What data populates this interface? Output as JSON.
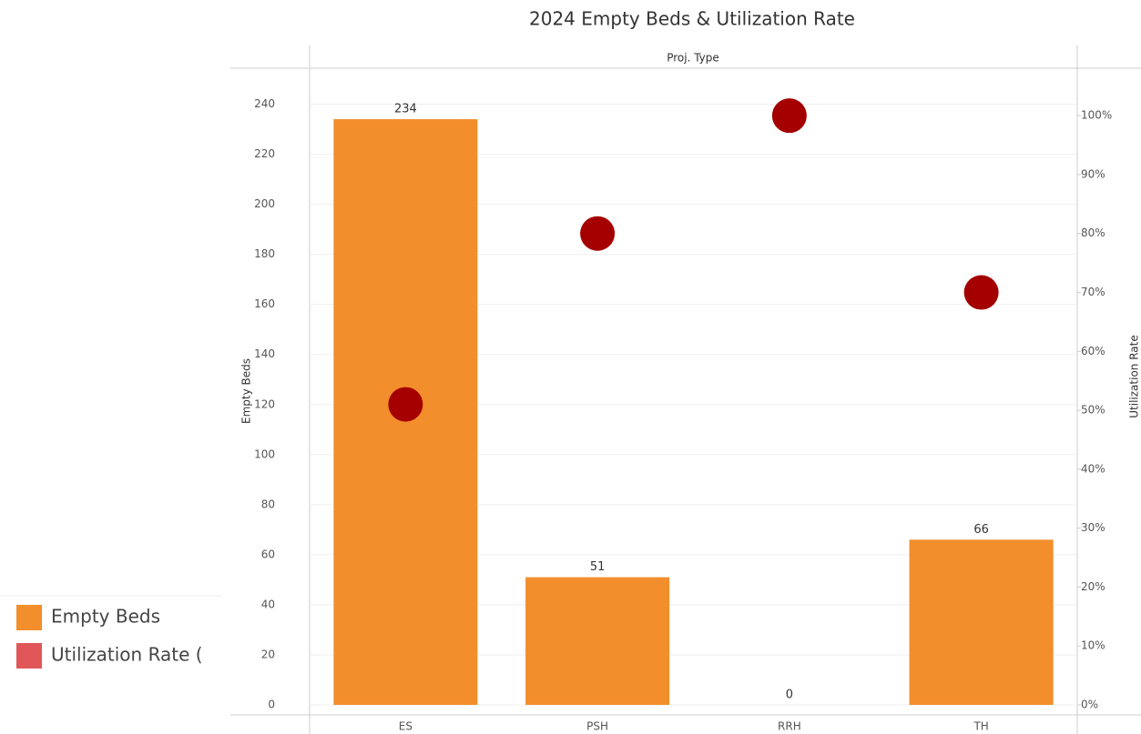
{
  "chart_data": {
    "type": "bar",
    "title": "2024 Empty Beds & Utilization Rate",
    "header": "Proj. Type",
    "categories": [
      "ES",
      "PSH",
      "RRH",
      "TH"
    ],
    "series": [
      {
        "name": "Empty Beds",
        "type": "bar",
        "color": "#f28e2b",
        "legend_color": "#f28e2b",
        "values": [
          234,
          51,
          0,
          66
        ]
      },
      {
        "name": "Utilization Rate (",
        "type": "scatter",
        "axis": "y2",
        "color": "#a50000",
        "legend_color": "#e15759",
        "values": [
          51,
          80,
          100,
          70
        ]
      }
    ],
    "ylabel": "Empty Beds",
    "y2label": "Utilization Rate",
    "ylim": [
      -4,
      254
    ],
    "yticks": [
      0,
      20,
      40,
      60,
      80,
      100,
      120,
      140,
      160,
      180,
      200,
      220,
      240
    ],
    "y2lim": [
      -1.7,
      107.9
    ],
    "y2ticks": [
      {
        "value": 0,
        "label": "0%"
      },
      {
        "value": 10,
        "label": "10%"
      },
      {
        "value": 20,
        "label": "20%"
      },
      {
        "value": 30,
        "label": "30%"
      },
      {
        "value": 40,
        "label": "40%"
      },
      {
        "value": 50,
        "label": "50%"
      },
      {
        "value": 60,
        "label": "60%"
      },
      {
        "value": 70,
        "label": "70%"
      },
      {
        "value": 80,
        "label": "80%"
      },
      {
        "value": 90,
        "label": "90%"
      },
      {
        "value": 100,
        "label": "100%"
      }
    ],
    "grid": true
  }
}
